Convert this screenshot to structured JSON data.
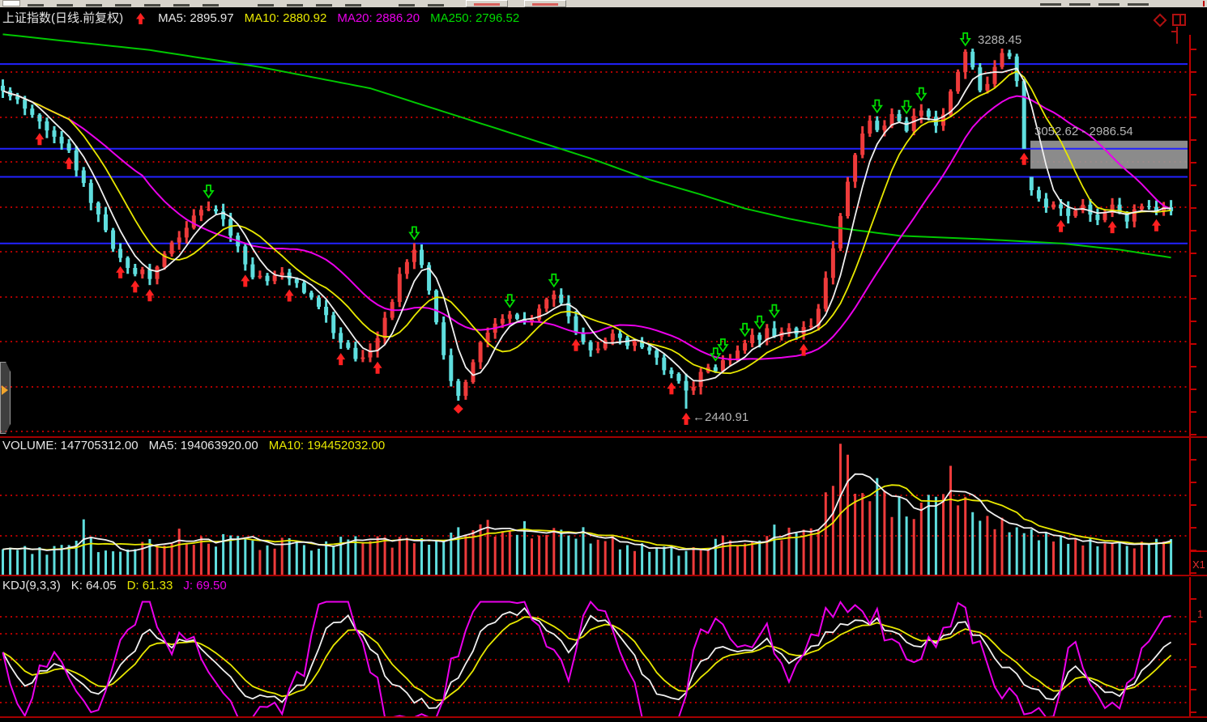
{
  "main_panel": {
    "title": "上证指数(日线.前复权)",
    "ma5": "MA5: 2895.97",
    "ma10": "MA10: 2880.92",
    "ma20": "MA20: 2886.20",
    "ma250": "MA250: 2796.52"
  },
  "volume_panel": {
    "volume": "VOLUME: 147705312.00",
    "ma5": "MA5: 194063920.00",
    "ma10": "MA10: 194452032.00"
  },
  "kdj_panel": {
    "name": "KDJ(9,3,3)",
    "k": "K: 64.05",
    "d": "D: 61.33",
    "j": "J: 69.50"
  },
  "right_margin": {
    "volume_scale": "X1",
    "kdj_clipped": "1"
  },
  "colors": {
    "up": "#ee3b3b",
    "down": "#5fdede",
    "ma5": "#f0f0f0",
    "ma10": "#e8e800",
    "ma20": "#ea00ea",
    "ma250": "#00c800",
    "grid_dot": "#b40000",
    "blue_line": "#2222ff",
    "axis": "#c00000",
    "annotation": "#b4b4b4",
    "buy_arrow": "#ff2020",
    "sell_arrow": "#00dc00",
    "gap_box": "#9a9a9a"
  },
  "chart_data": [
    {
      "type": "candlestick",
      "title": "上证指数(日线.前复权)",
      "indicator_values": {
        "MA5": 2895.97,
        "MA10": 2880.92,
        "MA20": 2886.2,
        "MA250": 2796.52
      },
      "closes": [
        3189,
        3177,
        3165,
        3150,
        3136,
        3119,
        3102,
        3085,
        3069,
        3045,
        3005,
        2965,
        2928,
        2892,
        2857,
        2822,
        2798,
        2774,
        2751,
        2765,
        2746,
        2780,
        2812,
        2831,
        2850,
        2871,
        2892,
        2905,
        2917,
        2904,
        2885,
        2854,
        2822,
        2774,
        2746,
        2759,
        2736,
        2751,
        2768,
        2746,
        2732,
        2717,
        2702,
        2683,
        2660,
        2625,
        2603,
        2580,
        2564,
        2555,
        2584,
        2606,
        2650,
        2698,
        2755,
        2789,
        2808,
        2774,
        2717,
        2641,
        2564,
        2507,
        2465,
        2507,
        2555,
        2593,
        2618,
        2641,
        2650,
        2660,
        2656,
        2645,
        2654,
        2675,
        2698,
        2711,
        2688,
        2656,
        2625,
        2599,
        2574,
        2587,
        2606,
        2618,
        2606,
        2593,
        2603,
        2587,
        2574,
        2555,
        2536,
        2517,
        2504,
        2488,
        2496,
        2522,
        2545,
        2536,
        2561,
        2553,
        2580,
        2599,
        2618,
        2608,
        2627,
        2608,
        2622,
        2637,
        2618,
        2627,
        2641,
        2675,
        2746,
        2822,
        2898,
        2974,
        3037,
        3092,
        3117,
        3092,
        3107,
        3132,
        3117,
        3098,
        3126,
        3147,
        3128,
        3109,
        3132,
        3189,
        3239,
        3281,
        3239,
        3186,
        3212,
        3250,
        3278,
        3270,
        3212,
        3052.62,
        2955,
        2930,
        2917,
        2926,
        2907,
        2892,
        2904,
        2919,
        2896,
        2885,
        2904,
        2919,
        2900,
        2888,
        2904,
        2924,
        2911,
        2900,
        2919,
        2906
      ],
      "no_jitter_indices": [
        0,
        131,
        136,
        137,
        138,
        139,
        140,
        159
      ],
      "gap": {
        "left_index": 139,
        "right_index": 140,
        "upper": 3052.62,
        "lower": 2986.54
      },
      "extremes": {
        "high": {
          "index": 136,
          "value": 3288.45
        },
        "low": {
          "index": 93,
          "value": 2440.91
        }
      },
      "blue_line_prices": [
        3252.0,
        3052.62,
        2986.54,
        2830.0
      ],
      "ma250_anchors": [
        [
          0,
          3322
        ],
        [
          20,
          3285
        ],
        [
          35,
          3245
        ],
        [
          50,
          3195
        ],
        [
          60,
          3140
        ],
        [
          70,
          3085
        ],
        [
          80,
          3030
        ],
        [
          88,
          2980
        ],
        [
          95,
          2945
        ],
        [
          101,
          2912
        ],
        [
          107,
          2888
        ],
        [
          113,
          2868
        ],
        [
          122,
          2848
        ],
        [
          133,
          2840
        ],
        [
          144,
          2830
        ],
        [
          152,
          2815
        ],
        [
          159,
          2796.52
        ]
      ],
      "buy_marks": [
        5,
        9,
        16,
        18,
        20,
        33,
        39,
        46,
        51,
        78,
        91,
        93,
        109,
        139,
        144,
        151,
        157
      ],
      "sell_marks": [
        28,
        56,
        69,
        75,
        97,
        98,
        101,
        103,
        105,
        119,
        123,
        125,
        131
      ],
      "diamond_marks": [
        62
      ],
      "annotations": {
        "peak": "3288.45",
        "gap_range": "3052.62 - 2986.54",
        "low": "←2440.91"
      }
    },
    {
      "type": "bar",
      "name": "VOLUME",
      "current": 147705312.0,
      "ma5": 194063920.0,
      "ma10": 194452032.0,
      "height_anchors": [
        [
          0,
          28
        ],
        [
          3,
          32
        ],
        [
          6,
          30
        ],
        [
          9,
          38
        ],
        [
          11,
          55
        ],
        [
          13,
          35
        ],
        [
          16,
          30
        ],
        [
          19,
          33
        ],
        [
          22,
          40
        ],
        [
          25,
          50
        ],
        [
          27,
          45
        ],
        [
          30,
          42
        ],
        [
          33,
          38
        ],
        [
          36,
          40
        ],
        [
          39,
          36
        ],
        [
          42,
          34
        ],
        [
          45,
          38
        ],
        [
          48,
          42
        ],
        [
          51,
          40
        ],
        [
          54,
          45
        ],
        [
          57,
          50
        ],
        [
          60,
          48
        ],
        [
          63,
          52
        ],
        [
          66,
          55
        ],
        [
          69,
          58
        ],
        [
          72,
          52
        ],
        [
          75,
          56
        ],
        [
          78,
          48
        ],
        [
          81,
          45
        ],
        [
          84,
          40
        ],
        [
          87,
          35
        ],
        [
          90,
          30
        ],
        [
          93,
          28
        ],
        [
          96,
          36
        ],
        [
          99,
          44
        ],
        [
          102,
          50
        ],
        [
          105,
          54
        ],
        [
          108,
          46
        ],
        [
          110,
          56
        ],
        [
          111,
          70
        ],
        [
          112,
          90
        ],
        [
          113,
          112
        ],
        [
          114,
          135
        ],
        [
          115,
          140
        ],
        [
          116,
          126
        ],
        [
          117,
          118
        ],
        [
          118,
          110
        ],
        [
          119,
          101
        ],
        [
          120,
          95
        ],
        [
          121,
          90
        ],
        [
          122,
          86
        ],
        [
          123,
          92
        ],
        [
          124,
          88
        ],
        [
          125,
          83
        ],
        [
          126,
          86
        ],
        [
          127,
          96
        ],
        [
          128,
          106
        ],
        [
          129,
          110
        ],
        [
          130,
          104
        ],
        [
          131,
          95
        ],
        [
          132,
          88
        ],
        [
          133,
          82
        ],
        [
          134,
          78
        ],
        [
          135,
          72
        ],
        [
          136,
          68
        ],
        [
          137,
          64
        ],
        [
          138,
          60
        ],
        [
          139,
          57
        ],
        [
          140,
          54
        ],
        [
          142,
          50
        ],
        [
          144,
          46
        ],
        [
          146,
          42
        ],
        [
          148,
          40
        ],
        [
          150,
          38
        ],
        [
          152,
          36
        ],
        [
          154,
          34
        ],
        [
          156,
          37
        ],
        [
          158,
          41
        ],
        [
          159,
          44
        ]
      ]
    },
    {
      "type": "line",
      "name": "KDJ(9,3,3)",
      "k": 64.05,
      "d": 61.33,
      "j": 69.5,
      "k_anchors": [
        [
          0,
          52
        ],
        [
          3,
          28
        ],
        [
          7,
          50
        ],
        [
          10,
          35
        ],
        [
          13,
          20
        ],
        [
          17,
          55
        ],
        [
          20,
          72
        ],
        [
          23,
          60
        ],
        [
          26,
          68
        ],
        [
          29,
          45
        ],
        [
          32,
          25
        ],
        [
          35,
          18
        ],
        [
          38,
          15
        ],
        [
          41,
          30
        ],
        [
          44,
          75
        ],
        [
          47,
          85
        ],
        [
          50,
          60
        ],
        [
          53,
          30
        ],
        [
          56,
          15
        ],
        [
          59,
          12
        ],
        [
          62,
          35
        ],
        [
          65,
          70
        ],
        [
          68,
          85
        ],
        [
          71,
          88
        ],
        [
          74,
          75
        ],
        [
          77,
          55
        ],
        [
          80,
          85
        ],
        [
          83,
          80
        ],
        [
          86,
          50
        ],
        [
          89,
          20
        ],
        [
          92,
          15
        ],
        [
          95,
          45
        ],
        [
          98,
          60
        ],
        [
          101,
          55
        ],
        [
          104,
          65
        ],
        [
          107,
          50
        ],
        [
          110,
          58
        ],
        [
          113,
          75
        ],
        [
          116,
          85
        ],
        [
          119,
          80
        ],
        [
          122,
          70
        ],
        [
          125,
          60
        ],
        [
          128,
          70
        ],
        [
          131,
          80
        ],
        [
          134,
          60
        ],
        [
          137,
          40
        ],
        [
          140,
          25
        ],
        [
          143,
          20
        ],
        [
          146,
          45
        ],
        [
          149,
          30
        ],
        [
          152,
          18
        ],
        [
          155,
          38
        ],
        [
          158,
          60
        ],
        [
          159,
          64
        ]
      ]
    }
  ]
}
